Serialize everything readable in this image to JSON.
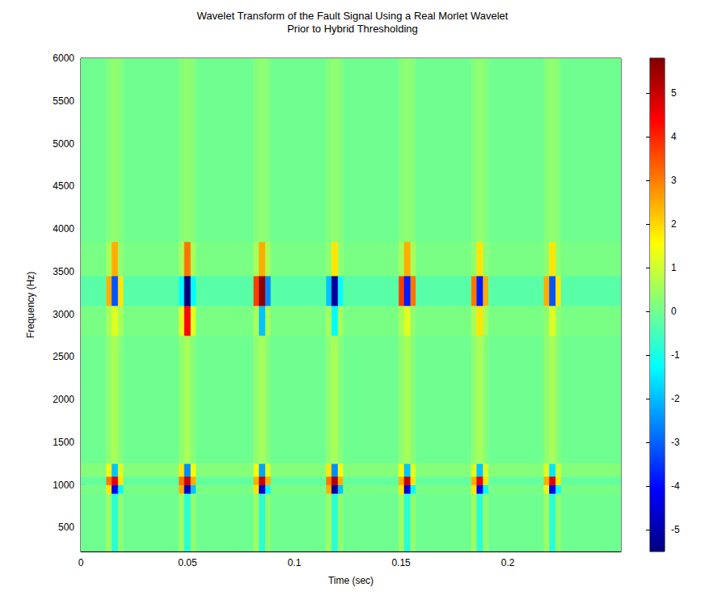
{
  "chart_data": {
    "type": "heatmap",
    "title": "Wavelet Transform of the Fault Signal Using a Real Morlet Wavelet\nPrior to Hybrid Thresholding",
    "xlabel": "Time (sec)",
    "ylabel": "Frequency (Hz)",
    "xlim": [
      0,
      0.253
    ],
    "xticks": [
      0,
      0.05,
      0.1,
      0.15,
      0.2
    ],
    "ylim": [
      220,
      6000
    ],
    "yticks": [
      500,
      1000,
      1500,
      2000,
      2500,
      3000,
      3500,
      4000,
      4500,
      5000,
      5500,
      6000
    ],
    "grid": false,
    "x_edges": [
      0,
      0.012,
      0.0145,
      0.0175,
      0.02,
      0.046,
      0.0485,
      0.0515,
      0.054,
      0.081,
      0.0835,
      0.0865,
      0.089,
      0.115,
      0.1175,
      0.1205,
      0.123,
      0.149,
      0.1515,
      0.1545,
      0.157,
      0.183,
      0.1855,
      0.1885,
      0.191,
      0.217,
      0.2195,
      0.2225,
      0.225,
      0.253
    ],
    "y_edges": [
      220,
      900,
      1000,
      1100,
      1250,
      2750,
      3100,
      3450,
      3850,
      6000
    ],
    "values": [
      [
        0,
        0.4,
        -0.6,
        0.3,
        0,
        0.4,
        -0.6,
        0.3,
        0,
        0.4,
        -0.6,
        0.3,
        0,
        0.4,
        -0.6,
        0.3,
        0,
        0.4,
        -0.6,
        0.3,
        0,
        0.4,
        -0.6,
        0.3,
        0,
        0.4,
        -0.6,
        0.3,
        0
      ],
      [
        0.1,
        1.5,
        -3.5,
        -1,
        0.1,
        2,
        -4.5,
        -1.5,
        0.1,
        1.5,
        -4,
        -1,
        0.1,
        2,
        -5,
        -1.5,
        0.1,
        1.5,
        -4,
        -1,
        0.1,
        1.5,
        -3.5,
        -1,
        0.1,
        1,
        -3.5,
        -1,
        0.1
      ],
      [
        -0.1,
        2.5,
        4,
        1.5,
        -0.1,
        2.5,
        4.5,
        2,
        -0.1,
        2,
        4.5,
        2,
        -0.1,
        2.5,
        5,
        2,
        -0.1,
        2,
        4.5,
        1.5,
        -0.1,
        2,
        4,
        1.5,
        -0.1,
        2,
        4,
        1.5,
        -0.1
      ],
      [
        0.2,
        1.2,
        -1.5,
        1,
        0.2,
        1.5,
        -2,
        1.2,
        0.2,
        1.2,
        -1.8,
        1,
        0.2,
        1.5,
        -2,
        1.2,
        0.2,
        1.2,
        -1.5,
        1,
        0.2,
        1,
        -1.5,
        1,
        0.2,
        1,
        -1.2,
        0.8,
        0.2
      ],
      [
        0,
        0.3,
        0.5,
        0.2,
        0,
        0.3,
        0.5,
        0.2,
        0,
        0.3,
        0.5,
        0.2,
        0,
        0.3,
        0.5,
        0.2,
        0,
        0.3,
        0.5,
        0.2,
        0,
        0.3,
        0.5,
        0.2,
        0,
        0.3,
        0.5,
        0.2,
        0
      ],
      [
        0.1,
        0.5,
        1,
        0.5,
        0.1,
        1,
        3.5,
        1,
        0.1,
        0.5,
        -1.5,
        0.5,
        0.1,
        0.5,
        -1,
        0.5,
        0.1,
        0.5,
        1,
        0.3,
        0.1,
        0.5,
        1.5,
        0.5,
        0.1,
        0.3,
        1,
        0.3,
        0.1
      ],
      [
        -0.2,
        2,
        -2.5,
        1.5,
        -0.2,
        -1,
        -5.5,
        -1,
        -0.2,
        3,
        5.5,
        -2,
        -0.2,
        -1.5,
        -5,
        -1,
        -0.2,
        3,
        -3,
        2.5,
        -0.2,
        2.5,
        -3,
        2,
        -0.2,
        2,
        -2.5,
        1.5,
        -0.2
      ],
      [
        0.1,
        0.5,
        2,
        0.3,
        0.1,
        0.5,
        2.5,
        0.5,
        0.1,
        0.5,
        2,
        0.5,
        0.1,
        0.3,
        1.5,
        0.3,
        0.1,
        0.5,
        2,
        0.5,
        0.1,
        0.3,
        1.5,
        0.3,
        0.1,
        0.3,
        1.5,
        0.3,
        0.1
      ],
      [
        0,
        0.2,
        0.3,
        0.2,
        0,
        0.2,
        0.3,
        0.2,
        0,
        0.2,
        0.3,
        0.2,
        0,
        0.2,
        0.3,
        0.2,
        0,
        0.2,
        0.3,
        0.2,
        0,
        0.2,
        0.3,
        0.2,
        0,
        0.2,
        0.3,
        0.2,
        0
      ]
    ],
    "colorbar": {
      "range": [
        -5.5,
        5.8
      ],
      "ticks": [
        -5,
        -4,
        -3,
        -2,
        -1,
        0,
        1,
        2,
        3,
        4,
        5
      ]
    }
  }
}
